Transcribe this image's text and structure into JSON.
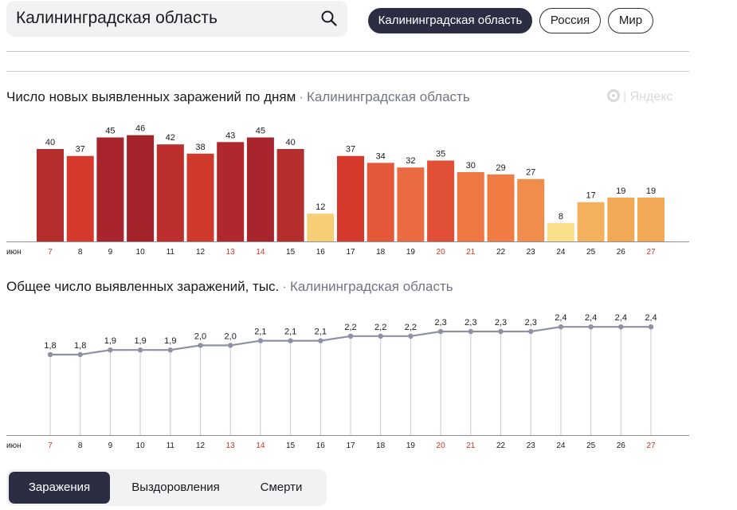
{
  "search": {
    "value": "Калининградская область"
  },
  "region_chips": [
    {
      "label": "Калининградская область",
      "active": true
    },
    {
      "label": "Россия",
      "active": false
    },
    {
      "label": "Мир",
      "active": false
    }
  ],
  "brand": "Яндекс",
  "charts": {
    "daily": {
      "title": "Число новых выявленных заражений по дням",
      "region": "Калининградская область"
    },
    "total": {
      "title": "Общее число выявленных заражений, тыс.",
      "region": "Калининградская область"
    }
  },
  "tabs": [
    {
      "label": "Заражения",
      "active": true
    },
    {
      "label": "Выздоровления",
      "active": false
    },
    {
      "label": "Смерти",
      "active": false
    }
  ],
  "chart_data": [
    {
      "type": "bar",
      "title": "Число новых выявленных заражений по дням",
      "month_label": "июн",
      "categories": [
        "7",
        "8",
        "9",
        "10",
        "11",
        "12",
        "13",
        "14",
        "15",
        "16",
        "17",
        "18",
        "19",
        "20",
        "21",
        "22",
        "23",
        "24",
        "25",
        "26",
        "27"
      ],
      "values": [
        40,
        37,
        45,
        46,
        42,
        38,
        43,
        45,
        40,
        12,
        37,
        34,
        32,
        35,
        30,
        29,
        27,
        8,
        17,
        19,
        19
      ],
      "weekend_categories": [
        "7",
        "13",
        "14",
        "20",
        "21",
        "27"
      ],
      "colors": [
        "#b52e2d",
        "#d53a2c",
        "#a8252d",
        "#a42229",
        "#bd2f2d",
        "#d03a2c",
        "#ae282d",
        "#a8252d",
        "#b52e2d",
        "#f6ce76",
        "#d53a2c",
        "#e5583a",
        "#ea6a42",
        "#e14f36",
        "#ef7744",
        "#f07c44",
        "#f08c4c",
        "#fbe08c",
        "#f4b15c",
        "#f2a955",
        "#f2a955"
      ],
      "ylim": [
        0,
        50
      ]
    },
    {
      "type": "line",
      "title": "Общее число выявленных заражений, тыс.",
      "month_label": "июн",
      "categories": [
        "7",
        "8",
        "9",
        "10",
        "11",
        "12",
        "13",
        "14",
        "15",
        "16",
        "17",
        "18",
        "19",
        "20",
        "21",
        "22",
        "23",
        "24",
        "25",
        "26",
        "27"
      ],
      "values": [
        1.8,
        1.8,
        1.9,
        1.9,
        1.9,
        2.0,
        2.0,
        2.1,
        2.1,
        2.1,
        2.2,
        2.2,
        2.2,
        2.3,
        2.3,
        2.3,
        2.3,
        2.4,
        2.4,
        2.4,
        2.4
      ],
      "value_labels": [
        "1,8",
        "1,8",
        "1,9",
        "1,9",
        "1,9",
        "2,0",
        "2,0",
        "2,1",
        "2,1",
        "2,1",
        "2,2",
        "2,2",
        "2,2",
        "2,3",
        "2,3",
        "2,3",
        "2,3",
        "2,4",
        "2,4",
        "2,4",
        "2,4"
      ],
      "weekend_categories": [
        "7",
        "13",
        "14",
        "20",
        "21",
        "27"
      ],
      "line_color": "#8e91a4"
    }
  ]
}
